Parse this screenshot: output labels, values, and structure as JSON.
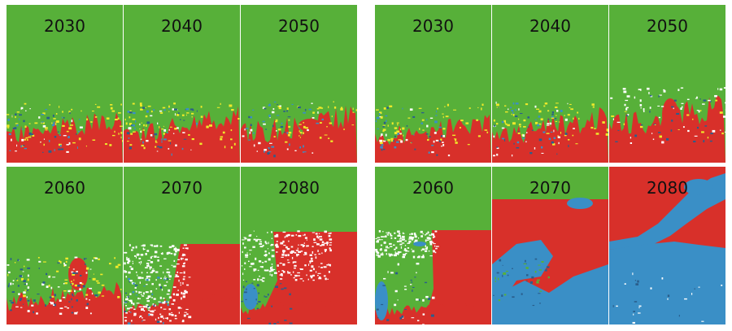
{
  "colors": {
    "green": "#57b039",
    "red": "#d8302a",
    "blue": "#3a8fc6",
    "yellow": "#f0ea2a",
    "white": "#ffffff",
    "darkblue": "#2a5e8c"
  },
  "groups": [
    {
      "panels": [
        {
          "year": "2030",
          "scenario": "left-2030"
        },
        {
          "year": "2040",
          "scenario": "left-2040"
        },
        {
          "year": "2050",
          "scenario": "left-2050"
        },
        {
          "year": "2060",
          "scenario": "left-2060"
        },
        {
          "year": "2070",
          "scenario": "left-2070"
        },
        {
          "year": "2080",
          "scenario": "left-2080"
        }
      ]
    },
    {
      "panels": [
        {
          "year": "2030",
          "scenario": "right-2030"
        },
        {
          "year": "2040",
          "scenario": "right-2040"
        },
        {
          "year": "2050",
          "scenario": "right-2050"
        },
        {
          "year": "2060",
          "scenario": "right-2060"
        },
        {
          "year": "2070",
          "scenario": "right-2070"
        },
        {
          "year": "2080",
          "scenario": "right-2080"
        }
      ]
    }
  ]
}
